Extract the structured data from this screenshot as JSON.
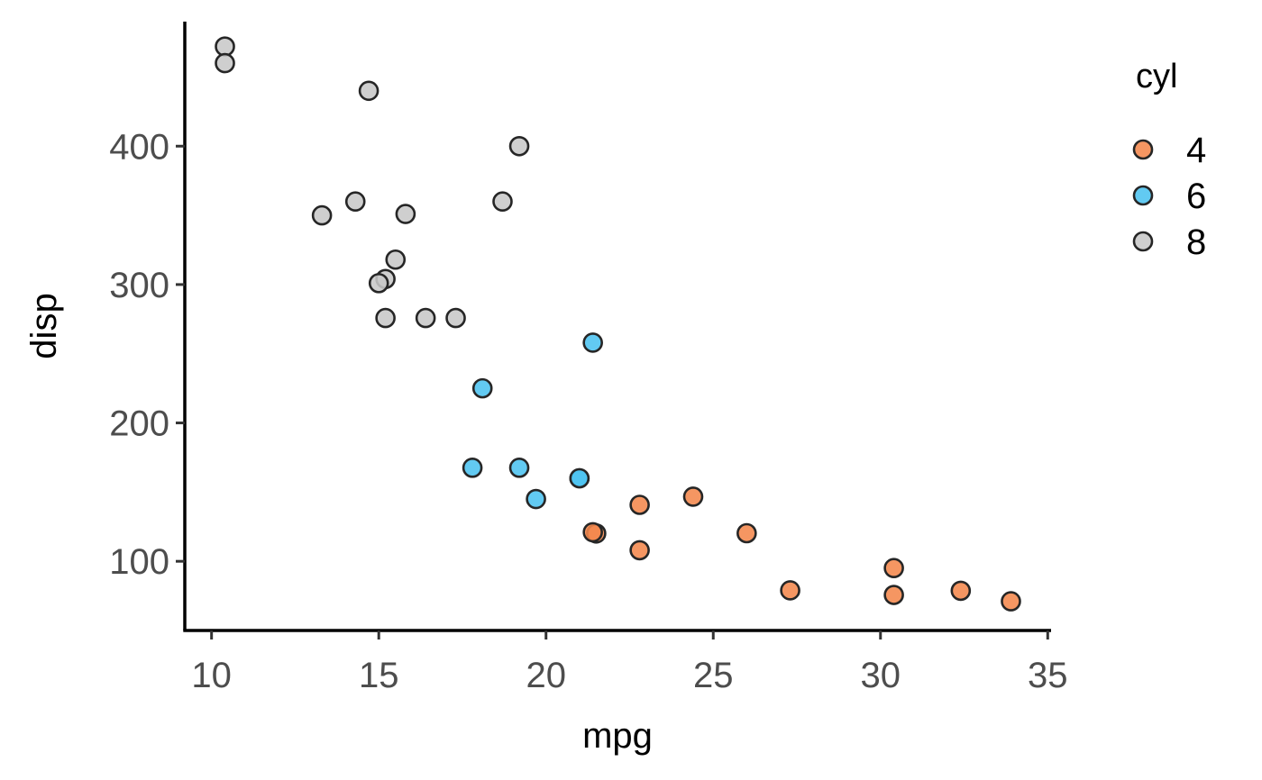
{
  "chart_data": {
    "type": "scatter",
    "xlabel": "mpg",
    "ylabel": "disp",
    "xlim": [
      9.2,
      35.1
    ],
    "ylim": [
      50,
      490
    ],
    "x_ticks": [
      10,
      15,
      20,
      25,
      30,
      35
    ],
    "y_ticks": [
      100,
      200,
      300,
      400
    ],
    "grid": false,
    "legend": {
      "title": "cyl",
      "position": "right"
    },
    "series": [
      {
        "name": "4",
        "color": "#f4874c",
        "points": [
          {
            "x": 22.8,
            "y": 108
          },
          {
            "x": 24.4,
            "y": 146.7
          },
          {
            "x": 22.8,
            "y": 140.8
          },
          {
            "x": 32.4,
            "y": 78.7
          },
          {
            "x": 30.4,
            "y": 75.7
          },
          {
            "x": 33.9,
            "y": 71.1
          },
          {
            "x": 21.5,
            "y": 120.1
          },
          {
            "x": 27.3,
            "y": 79
          },
          {
            "x": 26.0,
            "y": 120.3
          },
          {
            "x": 30.4,
            "y": 95.1
          },
          {
            "x": 21.4,
            "y": 121
          }
        ]
      },
      {
        "name": "6",
        "color": "#4cc3f0",
        "points": [
          {
            "x": 21.0,
            "y": 160
          },
          {
            "x": 21.0,
            "y": 160
          },
          {
            "x": 21.4,
            "y": 258
          },
          {
            "x": 18.1,
            "y": 225
          },
          {
            "x": 19.2,
            "y": 167.6
          },
          {
            "x": 17.8,
            "y": 167.6
          },
          {
            "x": 19.7,
            "y": 145
          }
        ]
      },
      {
        "name": "8",
        "color": "#c8c8c8",
        "points": [
          {
            "x": 18.7,
            "y": 360
          },
          {
            "x": 14.3,
            "y": 360
          },
          {
            "x": 16.4,
            "y": 275.8
          },
          {
            "x": 17.3,
            "y": 275.8
          },
          {
            "x": 15.2,
            "y": 275.8
          },
          {
            "x": 10.4,
            "y": 472
          },
          {
            "x": 10.4,
            "y": 460
          },
          {
            "x": 14.7,
            "y": 440
          },
          {
            "x": 15.5,
            "y": 318
          },
          {
            "x": 15.2,
            "y": 304
          },
          {
            "x": 13.3,
            "y": 350
          },
          {
            "x": 19.2,
            "y": 400
          },
          {
            "x": 15.8,
            "y": 351
          },
          {
            "x": 15.0,
            "y": 301
          }
        ]
      }
    ]
  }
}
